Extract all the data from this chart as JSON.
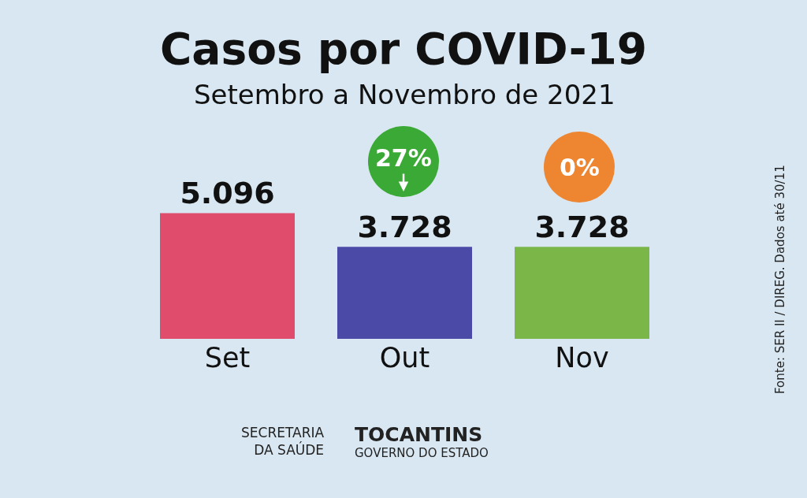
{
  "chart_data": {
    "type": "bar",
    "title": "Casos por COVID-19",
    "subtitle": "Setembro a Novembro de 2021",
    "categories": [
      "Set",
      "Out",
      "Nov"
    ],
    "values": [
      5096,
      3728,
      3728
    ],
    "value_labels": [
      "5.096",
      "3.728",
      "3.728"
    ],
    "colors": [
      "#e04c6c",
      "#4b4aa6",
      "#7ab648"
    ],
    "tick_labels": "x",
    "grid": false,
    "legend": false,
    "annotations": [
      "27%",
      "0%",
      "SECRETARIA\nDA SAÚDE",
      "TOCANTINS\nGOVERNO DO ESTADO",
      "Fonte: SER II / DIREG. Dados até 30/11"
    ]
  }
}
